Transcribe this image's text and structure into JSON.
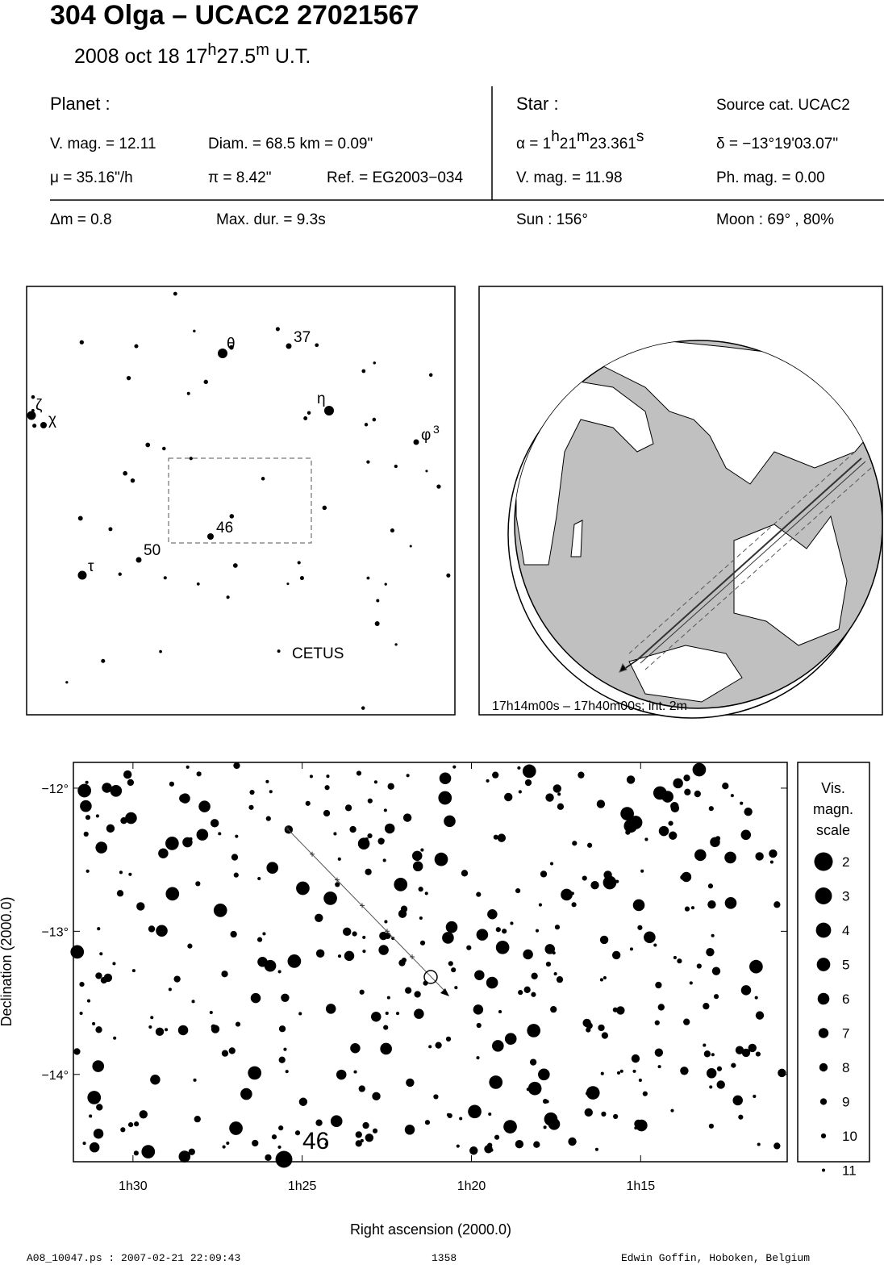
{
  "header": {
    "title": "304 Olga  –  UCAC2 27021567",
    "date": "2008 oct 18  17",
    "hour_unit": "h",
    "minutes": "27.5",
    "minute_unit": "m",
    "time_scale": " U.T."
  },
  "planet": {
    "label": "Planet :",
    "vmag": "V. mag. = 12.11",
    "diameter": "Diam. = 68.5 km = 0.09\"",
    "motion": "μ =  35.16\"/h",
    "parallax": "π =  8.42\"",
    "reference": "Ref. = EG2003−034",
    "delta_mag": "Δm = 0.8",
    "max_duration": "Max. dur. = 9.3s"
  },
  "star": {
    "label": "Star :",
    "source": "Source cat.  UCAC2",
    "alpha_prefix": "α =  1",
    "alpha_h": "h",
    "alpha_min": "21",
    "alpha_m": "m",
    "alpha_sec": "23.361",
    "alpha_s": "s",
    "delta": "δ = −13°19'03.07\"",
    "vmag": "V. mag. = 11.98",
    "phmag": "Ph. mag. =  0.00",
    "sun": "Sun : 156°",
    "moon": "Moon :  69° , 80%"
  },
  "finder": {
    "labels": [
      "θ",
      "37",
      "η",
      "ζ",
      "χ",
      "φ",
      "3",
      "46",
      "50",
      "τ"
    ],
    "constellation": "CETUS"
  },
  "globe": {
    "caption": "17h14m00s – 17h40m00s; int.  2m"
  },
  "star_map": {
    "xlabel": "Right ascension (2000.0)",
    "ylabel": "Declination (2000.0)",
    "xlim": [
      91.76,
      70.67
    ],
    "ylim": [
      -14.61,
      -11.82
    ],
    "xticks": [
      {
        "value": 90,
        "label": "1h30"
      },
      {
        "value": 85,
        "label": "1h25"
      },
      {
        "value": 80,
        "label": "1h20"
      },
      {
        "value": 75,
        "label": "1h15"
      }
    ],
    "yticks": [
      {
        "value": -12,
        "label": "−12°"
      },
      {
        "value": -13,
        "label": "−13°"
      },
      {
        "value": -14,
        "label": "−14°"
      }
    ],
    "star_label": "46",
    "legend_title": [
      "Vis.",
      "magn.",
      "scale"
    ],
    "legend_magnitudes": [
      2,
      3,
      4,
      5,
      6,
      7,
      8,
      9,
      10,
      11
    ]
  },
  "footer": {
    "file": "A08_10047.ps : 2007-02-21 22:09:43",
    "number": "1358",
    "author": "Edwin Goffin, Hoboken, Belgium"
  }
}
